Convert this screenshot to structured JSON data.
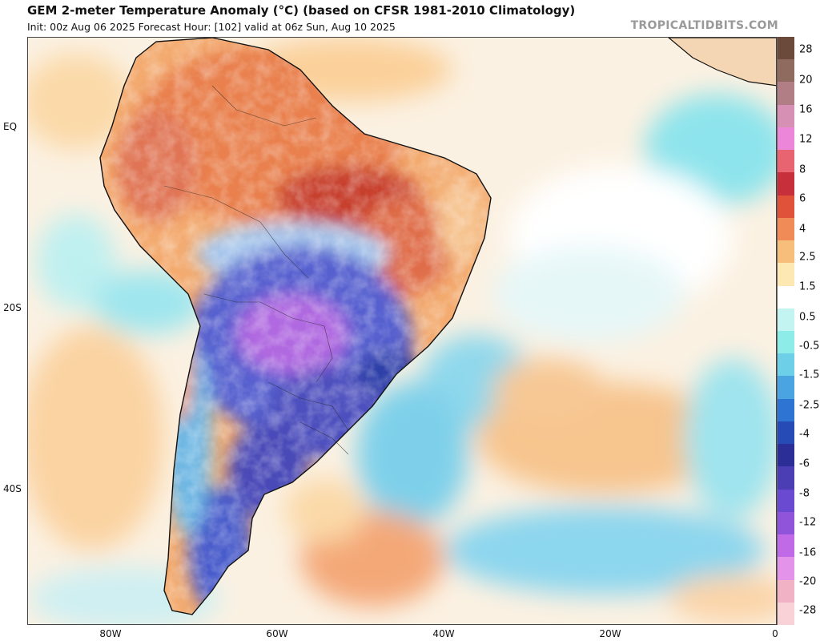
{
  "header": {
    "title": "GEM 2-meter Temperature Anomaly (°C) (based on CFSR 1981-2010 Climatology)",
    "subtitle": "Init: 00z Aug 06 2025   Forecast Hour: [102]   valid at 06z Sun, Aug 10 2025",
    "credit": "TROPICALTIDBITS.COM"
  },
  "axes": {
    "y_labels": [
      "EQ",
      "20S",
      "40S"
    ],
    "x_labels": [
      "80W",
      "60W",
      "40W",
      "20W",
      "0"
    ]
  },
  "colorbar": {
    "labels": [
      "28",
      "20",
      "16",
      "12",
      "8",
      "6",
      "4",
      "2.5",
      "1.5",
      "0.5",
      "-0.5",
      "-1.5",
      "-2.5",
      "-4",
      "-6",
      "-8",
      "-12",
      "-16",
      "-20",
      "-28"
    ],
    "colors": [
      "#6b4a3c",
      "#8f6a5e",
      "#b07e84",
      "#d690b4",
      "#ec86d8",
      "#e76470",
      "#c7303a",
      "#e0523a",
      "#f08a56",
      "#f7bd7a",
      "#fde8b4",
      "#ffffff",
      "#c4f4f2",
      "#8eece8",
      "#6ecfe8",
      "#4aa4e2",
      "#2e74d2",
      "#264ab6",
      "#2a2e96",
      "#4b3db4",
      "#6a4ad0",
      "#9054da",
      "#c06ae8",
      "#e394ea",
      "#f2b2c6",
      "#f8d2d6"
    ],
    "colors_note": ""
  },
  "map": {
    "features": [
      "south-america-landmass",
      "brazil-warm-anomaly",
      "central-cold-anomaly",
      "south-atlantic-warm-anomaly",
      "west-africa-coast"
    ]
  }
}
